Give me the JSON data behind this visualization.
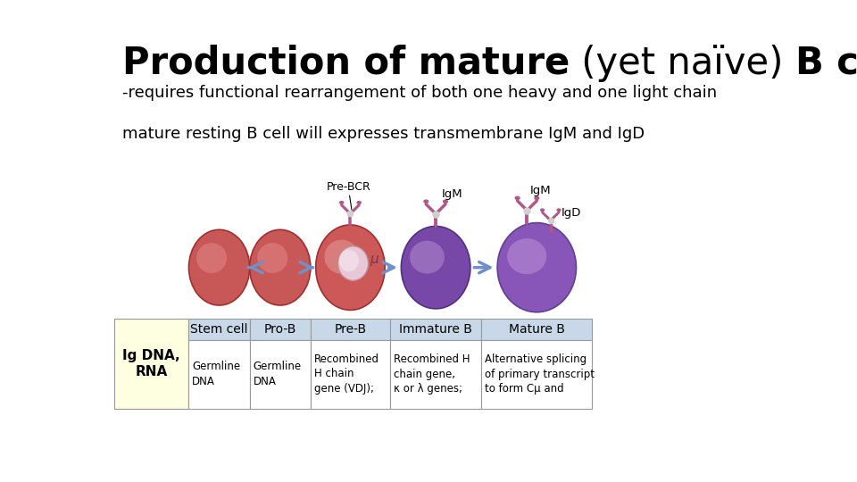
{
  "title_bold": "Production of mature",
  "title_normal": " (yet naïve) ",
  "title_bold2": "B cell",
  "subtitle": "-requires functional rearrangement of both one heavy and one light chain",
  "body_text": "mature resting B cell will expresses transmembrane IgM and IgD",
  "bg_color": "#ffffff",
  "title_fontsize": 30,
  "subtitle_fontsize": 13,
  "body_fontsize": 13,
  "table_header": [
    "Stem cell",
    "Pro-B",
    "Pre-B",
    "Immature B",
    "Mature B"
  ],
  "table_row_label": "Ig DNA,\nRNA",
  "table_row_cells": [
    "Germline\nDNA",
    "Germline\nDNA",
    "Recombined\nH chain\ngene (VDJ);",
    "Recombined H\nchain gene,\nκ or λ genes;",
    "Alternative splicing\nof primary transcript\nto form Cμ and"
  ],
  "table_header_bg": "#c8d8e8",
  "table_label_bg": "#fefee0",
  "table_cell_bg": "#ffffff",
  "table_border_color": "#999999",
  "cell_colors": [
    "#c85858",
    "#c85858",
    "#cc5858",
    "#7848a8",
    "#8855b8"
  ],
  "cell_edge_colors": [
    "#a03030",
    "#a03030",
    "#a03030",
    "#503080",
    "#604090"
  ],
  "cell_highlight": [
    "#e89090",
    "#e89090",
    "#e8a8a8",
    "#c098d8",
    "#c8a0e0"
  ],
  "arrow_color": "#7090c8",
  "nucleus_color": "#e8c8d8",
  "nucleus_edge": "#c09090",
  "nucleus_highlight": "#f8e8f0",
  "receptor_color": "#b05888",
  "mu_color": "#803050"
}
